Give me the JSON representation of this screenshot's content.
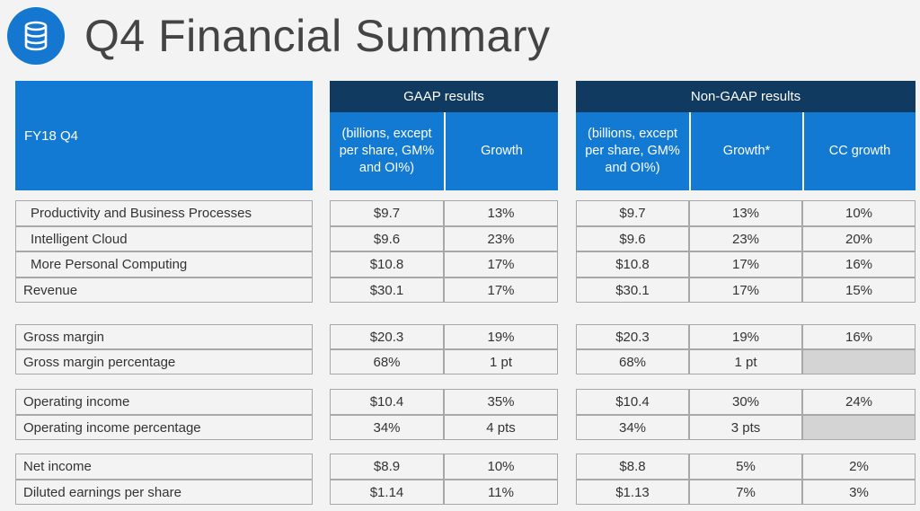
{
  "header": {
    "title": "Q4 Financial Summary",
    "logo_icon": "database-icon"
  },
  "table": {
    "period_label": "FY18 Q4",
    "gaap_title": "GAAP results",
    "nongaap_title": "Non-GAAP results",
    "columns": {
      "gaap_value": "(billions, except per share, GM% and OI%)",
      "gaap_growth": "Growth",
      "ng_value": "(billions, except per share, GM% and OI%)",
      "ng_growth": "Growth*",
      "ng_cc": "CC growth"
    },
    "rows": [
      {
        "label": "Productivity and Business Processes",
        "gaap_value": "$9.7",
        "gaap_growth": "13%",
        "ng_value": "$9.7",
        "ng_growth": "13%",
        "ng_cc": "10%"
      },
      {
        "label": "Intelligent Cloud",
        "gaap_value": "$9.6",
        "gaap_growth": "23%",
        "ng_value": "$9.6",
        "ng_growth": "23%",
        "ng_cc": "20%"
      },
      {
        "label": "More Personal Computing",
        "gaap_value": "$10.8",
        "gaap_growth": "17%",
        "ng_value": "$10.8",
        "ng_growth": "17%",
        "ng_cc": "16%"
      },
      {
        "label": "Revenue",
        "gaap_value": "$30.1",
        "gaap_growth": "17%",
        "ng_value": "$30.1",
        "ng_growth": "17%",
        "ng_cc": "15%"
      },
      {
        "label": "Gross margin",
        "gaap_value": "$20.3",
        "gaap_growth": "19%",
        "ng_value": "$20.3",
        "ng_growth": "19%",
        "ng_cc": "16%"
      },
      {
        "label": "Gross margin percentage",
        "gaap_value": "68%",
        "gaap_growth": "1 pt",
        "ng_value": "68%",
        "ng_growth": "1 pt",
        "ng_cc": ""
      },
      {
        "label": "Operating income",
        "gaap_value": "$10.4",
        "gaap_growth": "35%",
        "ng_value": "$10.4",
        "ng_growth": "30%",
        "ng_cc": "24%"
      },
      {
        "label": "Operating income percentage",
        "gaap_value": "34%",
        "gaap_growth": "4 pts",
        "ng_value": "34%",
        "ng_growth": "3 pts",
        "ng_cc": ""
      },
      {
        "label": "Net income",
        "gaap_value": "$8.9",
        "gaap_growth": "10%",
        "ng_value": "$8.8",
        "ng_growth": "5%",
        "ng_cc": "2%"
      },
      {
        "label": "Diluted earnings per share",
        "gaap_value": "$1.14",
        "gaap_growth": "11%",
        "ng_value": "$1.13",
        "ng_growth": "7%",
        "ng_cc": "3%"
      }
    ]
  },
  "colors": {
    "header_blue": "#137ad4",
    "header_navy": "#103a5f",
    "logo_blue": "#1577d0",
    "empty_cell": "#d4d4d4"
  }
}
